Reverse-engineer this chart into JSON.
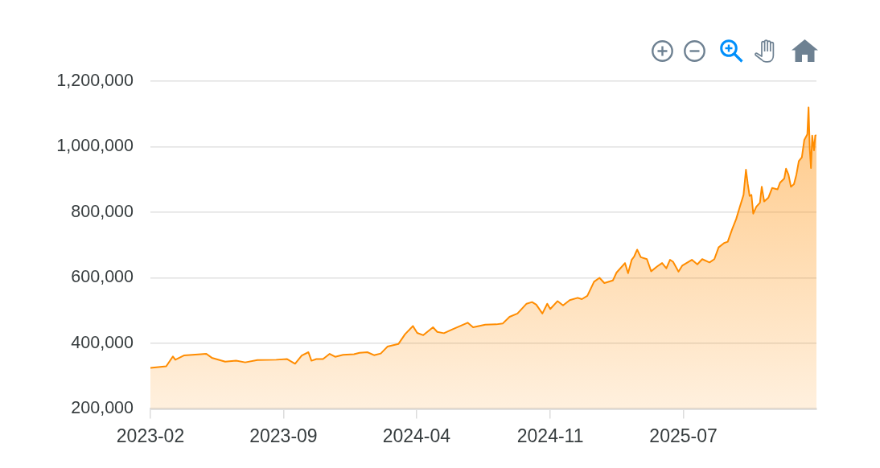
{
  "chart_data": {
    "type": "area",
    "x": [
      "2023-02-01",
      "2023-02-27",
      "2023-03-10",
      "2023-03-14",
      "2023-03-28",
      "2023-04-25",
      "2023-05-04",
      "2023-05-13",
      "2023-06-04",
      "2023-06-22",
      "2023-07-07",
      "2023-07-27",
      "2023-08-27",
      "2023-09-14",
      "2023-09-27",
      "2023-10-08",
      "2023-10-19",
      "2023-10-24",
      "2023-11-01",
      "2023-11-12",
      "2023-11-23",
      "2023-12-02",
      "2023-12-15",
      "2024-01-02",
      "2024-01-11",
      "2024-01-24",
      "2024-02-04",
      "2024-02-15",
      "2024-02-26",
      "2024-03-15",
      "2024-03-26",
      "2024-04-08",
      "2024-04-15",
      "2024-04-25",
      "2024-05-11",
      "2024-05-18",
      "2024-05-29",
      "2024-06-11",
      "2024-07-07",
      "2024-07-16",
      "2024-08-05",
      "2024-08-23",
      "2024-09-03",
      "2024-09-14",
      "2024-09-27",
      "2024-10-12",
      "2024-10-21",
      "2024-10-28",
      "2024-11-07",
      "2024-11-15",
      "2024-11-20",
      "2024-12-02",
      "2024-12-11",
      "2024-12-22",
      "2025-01-04",
      "2025-01-11",
      "2025-01-20",
      "2025-01-31",
      "2025-02-09",
      "2025-02-17",
      "2025-03-03",
      "2025-03-09",
      "2025-03-23",
      "2025-03-28",
      "2025-04-03",
      "2025-04-07",
      "2025-04-12",
      "2025-04-18",
      "2025-04-28",
      "2025-05-05",
      "2025-05-15",
      "2025-05-23",
      "2025-05-30",
      "2025-06-05",
      "2025-06-10",
      "2025-06-19",
      "2025-06-25",
      "2025-07-11",
      "2025-07-20",
      "2025-07-28",
      "2025-08-09",
      "2025-08-17",
      "2025-08-24",
      "2025-09-02",
      "2025-09-08",
      "2025-09-15",
      "2025-09-22",
      "2025-09-28",
      "2025-10-04",
      "2025-10-08",
      "2025-10-11",
      "2025-10-14",
      "2025-10-17",
      "2025-10-20",
      "2025-10-25",
      "2025-10-31",
      "2025-11-03",
      "2025-11-07",
      "2025-11-14",
      "2025-11-20",
      "2025-11-29",
      "2025-12-03",
      "2025-12-10",
      "2025-12-13",
      "2025-12-17",
      "2025-12-21",
      "2025-12-26",
      "2025-12-30",
      "2026-01-03",
      "2026-01-08",
      "2026-01-12",
      "2026-01-17",
      "2026-01-19",
      "2026-01-21",
      "2026-01-23",
      "2026-01-25",
      "2026-01-28",
      "2026-01-30",
      "2026-02-01"
    ],
    "series": [
      {
        "color": "#ff8c00",
        "values": [
          325000,
          330000,
          360000,
          350000,
          363000,
          367000,
          368000,
          356000,
          344000,
          347000,
          342000,
          349000,
          350000,
          352000,
          338000,
          363000,
          373000,
          347000,
          352000,
          352000,
          368000,
          359000,
          365000,
          367000,
          371000,
          373000,
          364000,
          369000,
          390000,
          398000,
          428000,
          453000,
          432000,
          425000,
          449000,
          435000,
          431000,
          442000,
          463000,
          449000,
          457000,
          458000,
          461000,
          481000,
          491000,
          521000,
          526000,
          518000,
          491000,
          521000,
          505000,
          529000,
          516000,
          532000,
          539000,
          535000,
          545000,
          588000,
          600000,
          584000,
          592000,
          616000,
          645000,
          614000,
          655000,
          665000,
          686000,
          663000,
          657000,
          620000,
          635000,
          645000,
          629000,
          655000,
          649000,
          619000,
          637000,
          655000,
          641000,
          657000,
          647000,
          657000,
          693000,
          706000,
          710000,
          747000,
          780000,
          817000,
          853000,
          930000,
          886000,
          850000,
          853000,
          796000,
          817000,
          829000,
          878000,
          833000,
          845000,
          874000,
          870000,
          890000,
          903000,
          933000,
          915000,
          878000,
          886000,
          915000,
          956000,
          968000,
          1021000,
          1038000,
          1120000,
          993000,
          935000,
          1034000,
          989000,
          1034000,
          1035000
        ]
      }
    ],
    "xlim": [
      "2023-02-01",
      "2026-02-01"
    ],
    "xticks": [
      {
        "value": "2023-02-01",
        "label": "2023-02"
      },
      {
        "value": "2023-09-08",
        "label": "2023-09"
      },
      {
        "value": "2024-04-14",
        "label": "2024-04"
      },
      {
        "value": "2024-11-20",
        "label": "2024-11"
      },
      {
        "value": "2025-06-27",
        "label": "2025-07"
      }
    ],
    "ylim": [
      200000,
      1200000
    ],
    "yticks": [
      {
        "value": 200000,
        "label": "200,000"
      },
      {
        "value": 400000,
        "label": "400,000"
      },
      {
        "value": 600000,
        "label": "600,000"
      },
      {
        "value": 800000,
        "label": "800,000"
      },
      {
        "value": 1000000,
        "label": "1,000,000"
      },
      {
        "value": 1200000,
        "label": "1,200,000"
      }
    ],
    "grid": "y"
  }
}
